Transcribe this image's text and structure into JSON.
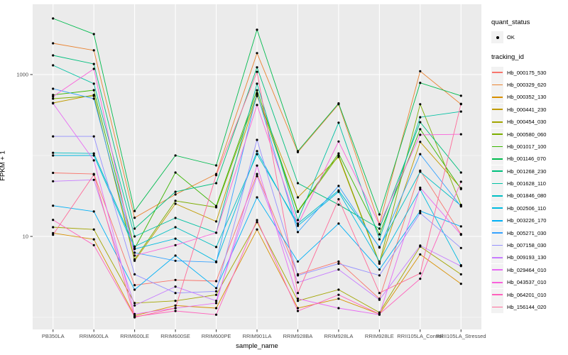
{
  "axes": {
    "x_title": "sample_name",
    "y_title": "FPKM + 1"
  },
  "legend": {
    "quant_status_title": "quant_status",
    "quant_status_items": [
      {
        "label": "OK"
      }
    ],
    "tracking_title": "tracking_id"
  },
  "chart_data": {
    "type": "line",
    "title": "",
    "xlabel": "sample_name",
    "ylabel": "FPKM + 1",
    "y_scale": "log10",
    "y_major_ticks": [
      10,
      1000
    ],
    "y_minor_gridlines": [
      1,
      100
    ],
    "ylim_px_map": "y = 333 - (log10(v)-1)*114",
    "grid": true,
    "legend_position": "right",
    "panel_bg": "#EBEBEB",
    "point_color": "#000000",
    "categories": [
      "PB350LA",
      "RRIM600LA",
      "RRIM600LE",
      "RRIM600SE",
      "RRIM600PE",
      "RRIM901LA",
      "RRIM928BA",
      "RRIM928LA",
      "RRIM928LE",
      "RRII105LA_Control",
      "RRII105LA_Stressed"
    ],
    "series": [
      {
        "name": "Hb_000175_530",
        "color": "#F8766D",
        "values": [
          61,
          59,
          2.5,
          2.9,
          2.8,
          59,
          3.4,
          4.9,
          1.7,
          65,
          10.7
        ]
      },
      {
        "name": "Hb_000329_620",
        "color": "#EA8331",
        "values": [
          2430,
          1990,
          17,
          33,
          59,
          1840,
          110,
          430,
          14.2,
          1100,
          430
        ]
      },
      {
        "name": "Hb_000352_130",
        "color": "#D89000",
        "values": [
          11,
          9.2,
          1.05,
          1.4,
          1.3,
          12.2,
          1.3,
          1.7,
          1.1,
          6,
          2.6
        ]
      },
      {
        "name": "Hb_000441_230",
        "color": "#C09B00",
        "values": [
          446,
          560,
          5,
          25.3,
          15.3,
          545,
          30.4,
          96,
          4.6,
          147,
          39.5
        ]
      },
      {
        "name": "Hb_000454_030",
        "color": "#A3A500",
        "values": [
          13,
          12.2,
          1.5,
          1.6,
          1.9,
          15,
          1.6,
          2.2,
          1.15,
          7.5,
          3.4
        ]
      },
      {
        "name": "Hb_000580_060",
        "color": "#7CAE00",
        "values": [
          503,
          545,
          5.2,
          27.5,
          22.9,
          570,
          20.1,
          100,
          4.7,
          430,
          24.5
        ]
      },
      {
        "name": "Hb_001017_100",
        "color": "#39B600",
        "values": [
          560,
          641,
          7.1,
          61.6,
          23.8,
          640,
          20.5,
          106,
          10.6,
          211,
          38.5
        ]
      },
      {
        "name": "Hb_001146_070",
        "color": "#00BB4E",
        "values": [
          4930,
          3160,
          20.6,
          100,
          75.4,
          3580,
          113,
          440,
          18.7,
          790,
          547
        ]
      },
      {
        "name": "Hb_001268_230",
        "color": "#00BF7D",
        "values": [
          1725,
          1350,
          12.5,
          35.6,
          45.5,
          1230,
          45.5,
          24.7,
          12.5,
          258,
          61.6
        ]
      },
      {
        "name": "Hb_001628_110",
        "color": "#00C1A3",
        "values": [
          1300,
          770,
          10,
          16.9,
          11.1,
          770,
          15.9,
          254,
          9.2,
          297,
          349
        ]
      },
      {
        "name": "Hb_001846_080",
        "color": "#00BFC4",
        "values": [
          108,
          106,
          7.5,
          13,
          7.4,
          104,
          14.4,
          37,
          7.4,
          63,
          24
        ]
      },
      {
        "name": "Hb_002506_110",
        "color": "#00BAE0",
        "values": [
          100,
          100,
          7,
          9.4,
          4.9,
          113,
          13.5,
          35.6,
          4.9,
          38,
          4.4
        ]
      },
      {
        "name": "Hb_003226_170",
        "color": "#00B0F6",
        "values": [
          24,
          20.3,
          2.2,
          5.8,
          2.3,
          30.4,
          4.9,
          14.4,
          3.9,
          20.6,
          13.3
        ]
      },
      {
        "name": "Hb_005271_030",
        "color": "#35A2FF",
        "values": [
          668,
          503,
          6.3,
          5,
          4.8,
          590,
          11.3,
          42,
          7.3,
          104,
          23.5
        ]
      },
      {
        "name": "Hb_007158_030",
        "color": "#9590FF",
        "values": [
          172,
          172,
          3.4,
          2,
          2.1,
          156,
          3.3,
          4.6,
          3.3,
          19.4,
          7.2
        ]
      },
      {
        "name": "Hb_009193_130",
        "color": "#C77CFF",
        "values": [
          48,
          50,
          1.4,
          2.4,
          1.6,
          55.6,
          2.7,
          3.9,
          1.65,
          7.7,
          4.3
        ]
      },
      {
        "name": "Hb_029464_010",
        "color": "#E76BF3",
        "values": [
          440,
          87,
          1.1,
          1.3,
          1.5,
          75,
          1.7,
          1.3,
          1.08,
          40,
          10.5
        ]
      },
      {
        "name": "Hb_043537_010",
        "color": "#FA62DB",
        "values": [
          535,
          1175,
          5.8,
          7.8,
          11.1,
          420,
          14,
          149,
          14,
          180,
          183
        ]
      },
      {
        "name": "Hb_064201_010",
        "color": "#FF62BC",
        "values": [
          16,
          7.8,
          1.02,
          1.2,
          1.08,
          15.9,
          1.2,
          1.9,
          1.1,
          3,
          47.4
        ]
      },
      {
        "name": "Hb_156144_020",
        "color": "#FF6A98",
        "values": [
          10.5,
          58,
          1,
          1.3,
          57,
          1080,
          2,
          28.8,
          2,
          3.5,
          435
        ]
      }
    ]
  }
}
